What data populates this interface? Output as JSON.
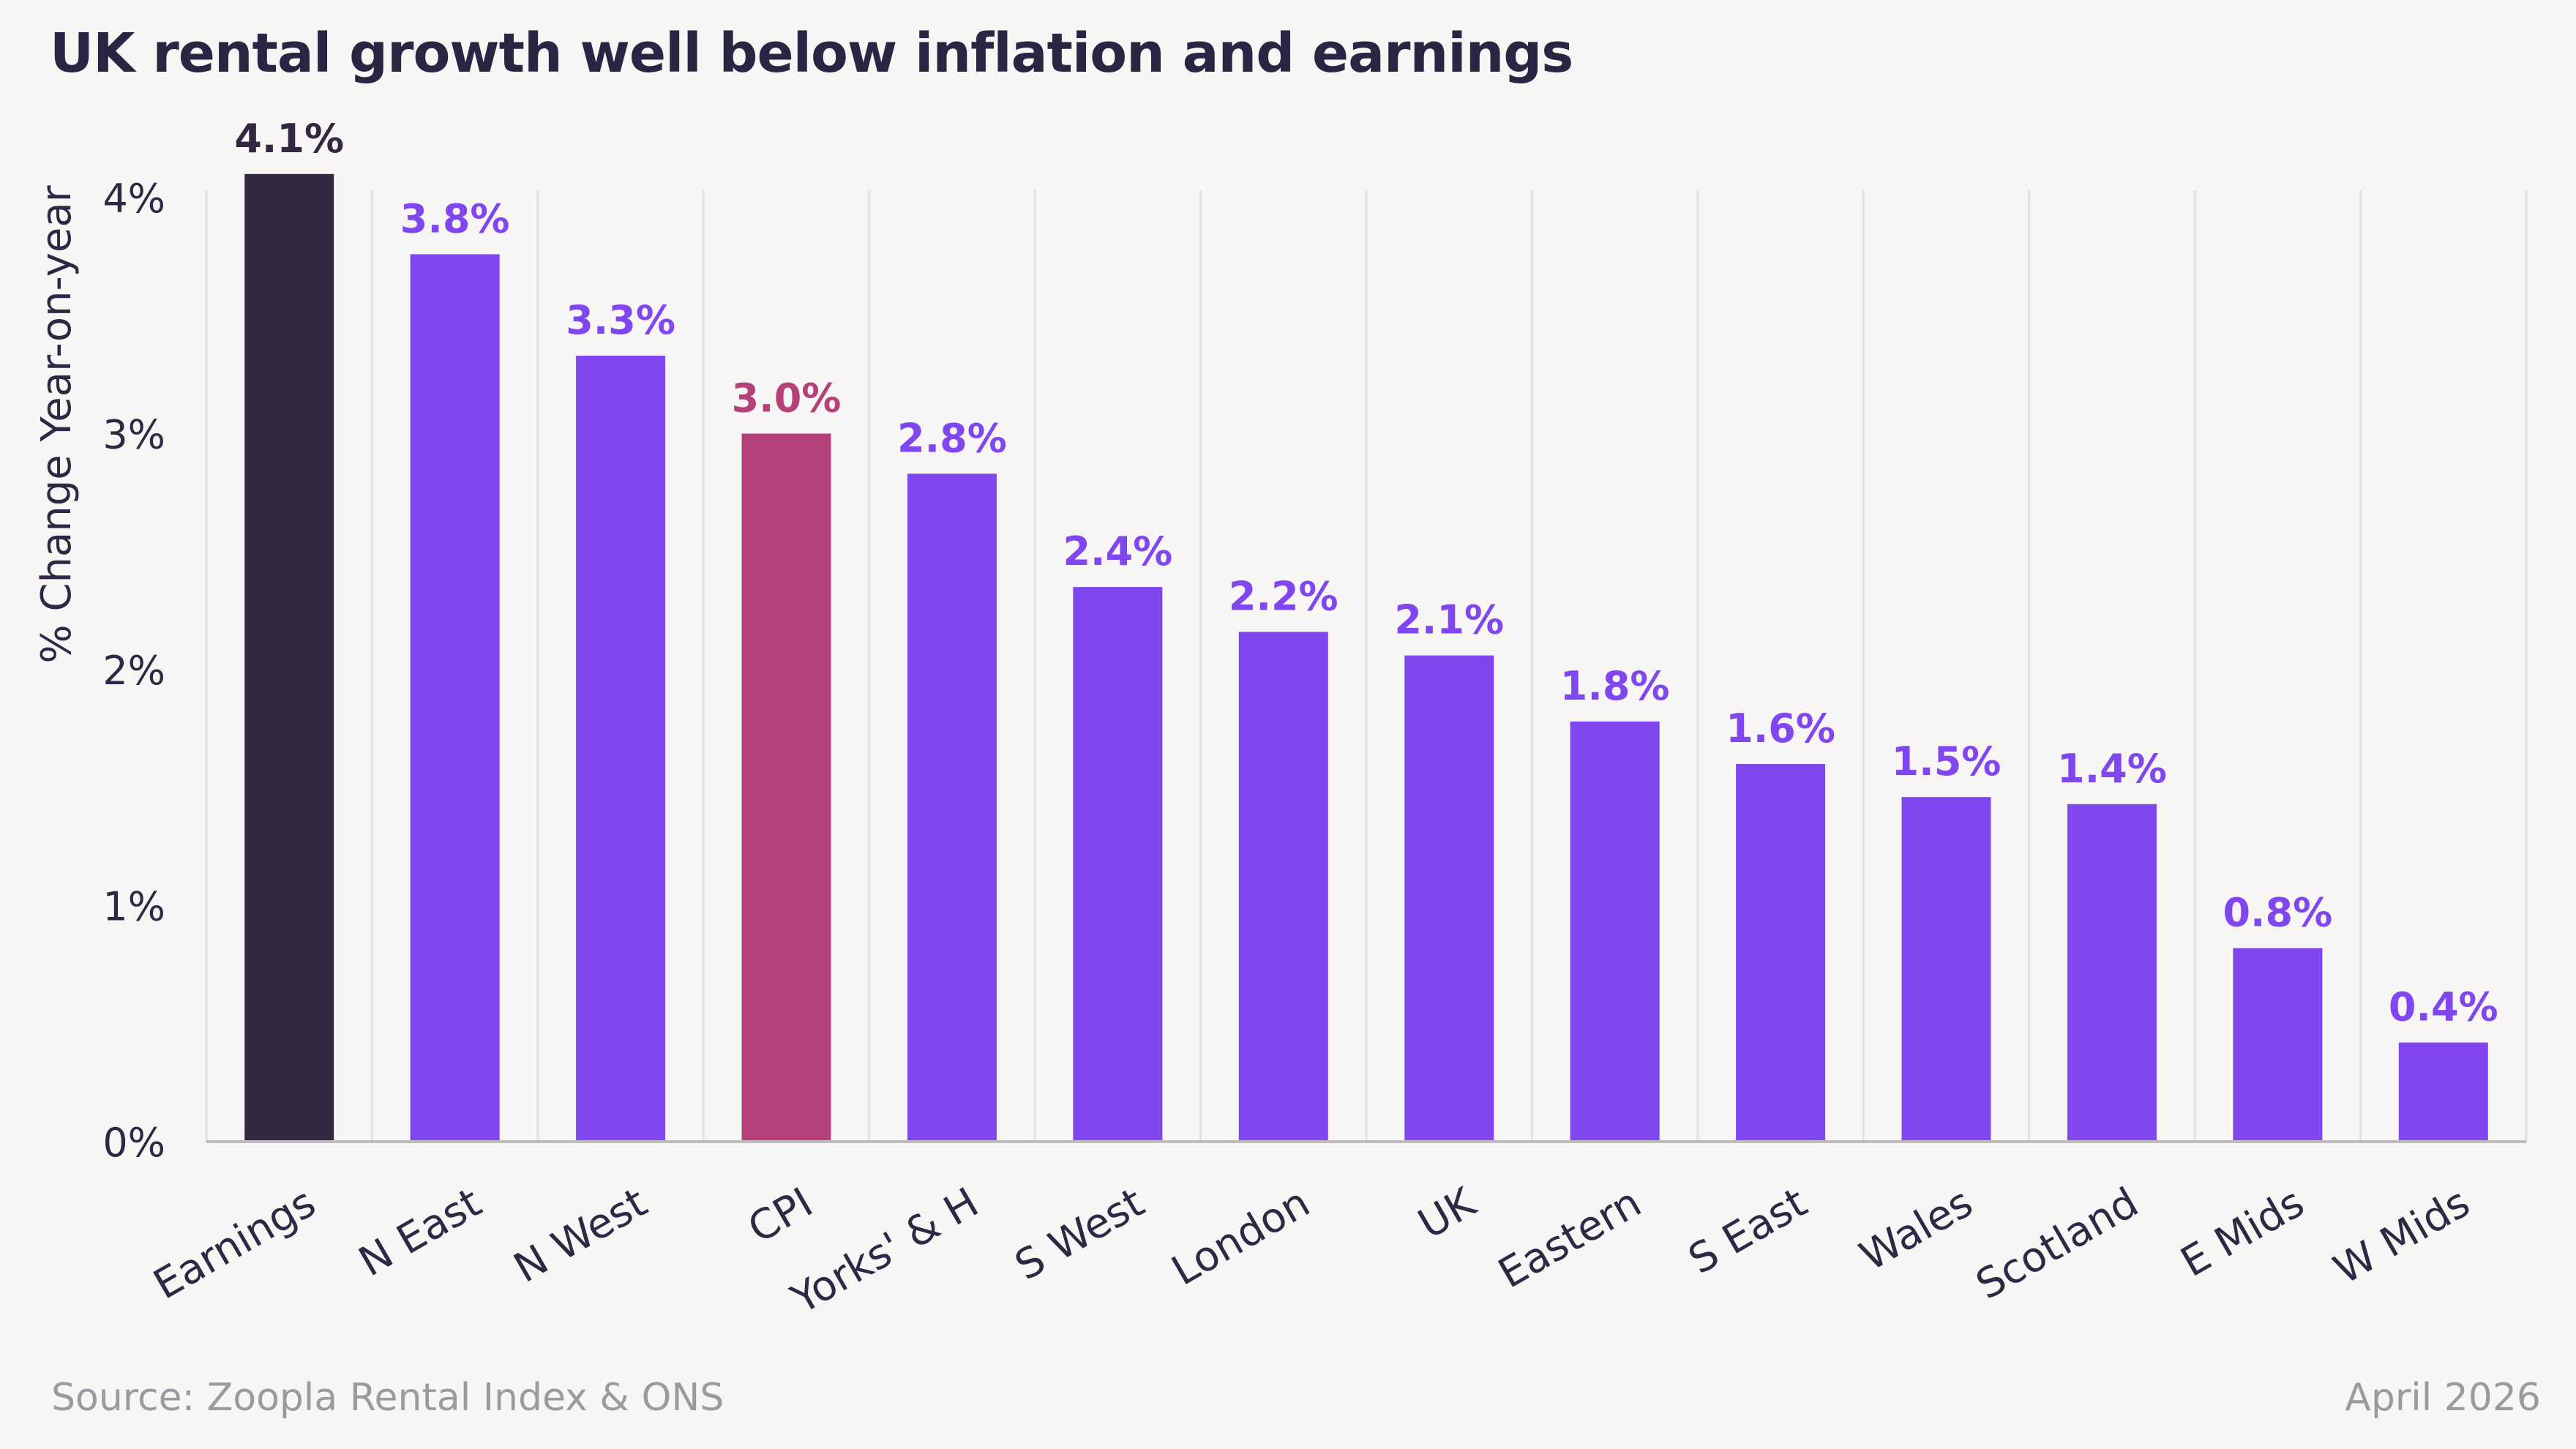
{
  "title": "UK rental growth well below inflation and earnings",
  "footer": {
    "source": "Source: Zoopla Rental Index & ONS",
    "date": "April 2026"
  },
  "colors": {
    "earnings": "#32283f",
    "region": "#8046f0",
    "cpi": "#b5407a",
    "grid": "#e3e1e1",
    "axis": "#bdbbbb",
    "text": "#2f2845",
    "background": "#f7f6f4"
  },
  "chart_data": {
    "type": "bar",
    "ylabel": "% Change Year-on-year",
    "xlabel": "",
    "ylim": [
      0,
      4.2
    ],
    "yticks": [
      0,
      1,
      2,
      3,
      4
    ],
    "ytick_labels": [
      "0%",
      "1%",
      "2%",
      "3%",
      "4%"
    ],
    "grid": "vertical",
    "categories": [
      "Earnings",
      "N East",
      "N West",
      "CPI",
      "Yorks' & H",
      "S West",
      "London",
      "UK",
      "Eastern",
      "S East",
      "Wales",
      "Scotland",
      "E Mids",
      "W Mids"
    ],
    "values": [
      4.1,
      3.76,
      3.33,
      3.0,
      2.83,
      2.35,
      2.16,
      2.06,
      1.78,
      1.6,
      1.46,
      1.43,
      0.82,
      0.42
    ],
    "value_labels": [
      "4.1%",
      "3.8%",
      "3.3%",
      "3.0%",
      "2.8%",
      "2.4%",
      "2.2%",
      "2.1%",
      "1.8%",
      "1.6%",
      "1.5%",
      "1.4%",
      "0.8%",
      "0.4%"
    ],
    "bar_color_keys": [
      "earnings",
      "region",
      "region",
      "cpi",
      "region",
      "region",
      "region",
      "region",
      "region",
      "region",
      "region",
      "region",
      "region",
      "region"
    ]
  }
}
